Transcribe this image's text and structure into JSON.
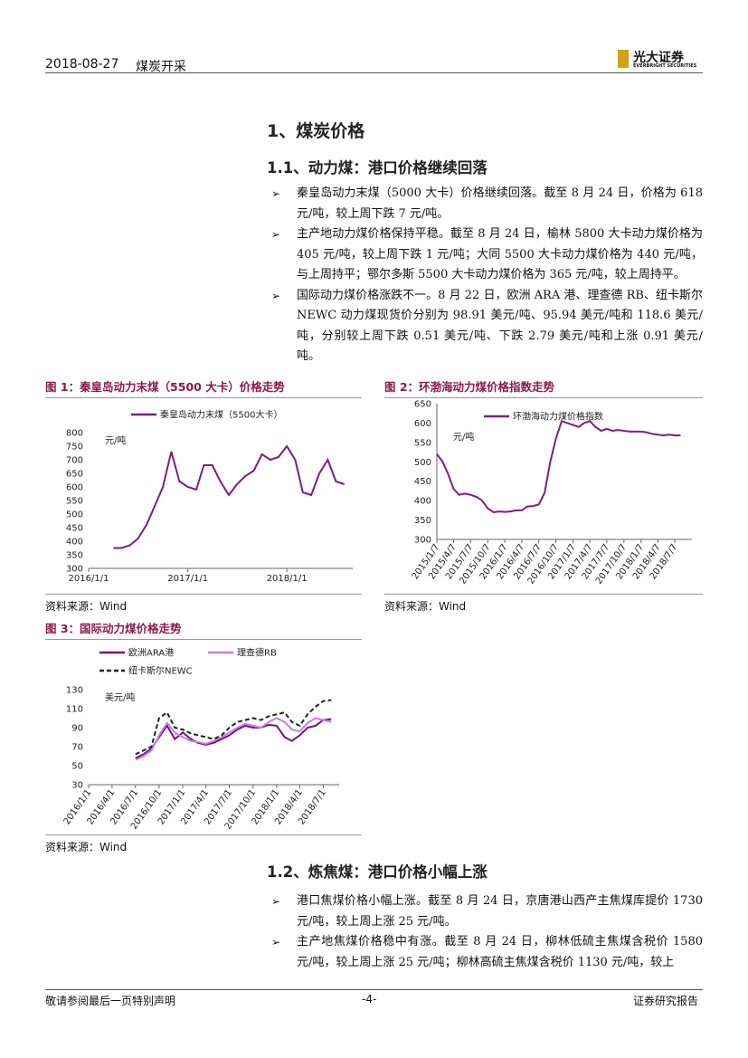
{
  "header": {
    "date": "2018-08-27",
    "industry": "煤炭开采",
    "logo_cn": "光大证券",
    "logo_en": "EVERBRIGHT SECURITIES"
  },
  "section": {
    "title": "1、煤炭价格"
  },
  "subsections": [
    {
      "title": "1.1、动力煤：港口价格继续回落",
      "bullets": [
        "秦皇岛动力末煤（5000 大卡）价格继续回落。截至 8 月 24 日，价格为 618 元/吨，较上周下跌 7 元/吨。",
        "主产地动力煤价格保持平稳。截至 8 月 24 日，榆林 5800 大卡动力煤价格为 405 元/吨，较上周下跌 1 元/吨；大同 5500 大卡动力煤价格为 440 元/吨，与上周持平；鄂尔多斯 5500 大卡动力煤价格为 365 元/吨，较上周持平。",
        "国际动力煤价格涨跌不一。8 月 22 日，欧洲 ARA 港、理查德 RB、纽卡斯尔 NEWC 动力煤现货价分别为 98.91 美元/吨、95.94 美元/吨和 118.6 美元/吨，分别较上周下跌 0.51 美元/吨、下跌 2.79 美元/吨和上涨 0.91 美元/吨。"
      ]
    },
    {
      "title": "1.2、炼焦煤：港口价格小幅上涨",
      "bullets": [
        "港口焦煤价格小幅上涨。截至 8 月 24 日，京唐港山西产主焦煤库提价 1730 元/吨，较上周上涨 25 元/吨。",
        "主产地焦煤价格稳中有涨。截至 8 月 24 日，柳林低硫主焦煤含税价 1580 元/吨，较上周上涨 25 元/吨；柳林高硫主焦煤含税价 1130 元/吨，较上"
      ]
    }
  ],
  "figures": [
    {
      "caption": "图 1：秦皇岛动力末煤（5500 大卡）价格走势",
      "source": "资料来源：Wind",
      "chart_data": {
        "type": "line",
        "y_unit": "元/吨",
        "x": [
          "2016/4/1",
          "2016/5/1",
          "2016/6/1",
          "2016/7/1",
          "2016/8/1",
          "2016/9/1",
          "2016/10/1",
          "2016/11/1",
          "2016/12/1",
          "2017/1/1",
          "2017/2/1",
          "2017/3/1",
          "2017/4/1",
          "2017/5/1",
          "2017/6/1",
          "2017/7/1",
          "2017/8/1",
          "2017/9/1",
          "2017/10/1",
          "2017/11/1",
          "2017/12/1",
          "2018/1/1",
          "2018/2/1",
          "2018/3/1",
          "2018/4/1",
          "2018/5/1",
          "2018/6/1",
          "2018/7/1",
          "2018/8/1"
        ],
        "series": [
          {
            "name": "秦皇岛动力末煤（5500大卡）",
            "color": "#7b1f7b",
            "values": [
              375,
              375,
              385,
              410,
              460,
              530,
              600,
              730,
              620,
              600,
              590,
              680,
              680,
              620,
              570,
              610,
              640,
              660,
              720,
              700,
              710,
              750,
              700,
              580,
              570,
              650,
              700,
              620,
              610
            ]
          }
        ],
        "xlim": [
          "2016/1/1",
          "2018/9/1"
        ],
        "xticks": [
          "2016/1/1",
          "2017/1/1",
          "2018/1/1"
        ],
        "ylim": [
          300,
          800
        ],
        "yticks": [
          300,
          350,
          400,
          450,
          500,
          550,
          600,
          650,
          700,
          750,
          800
        ],
        "grid": false,
        "legend": "top"
      }
    },
    {
      "caption": "图 2：环渤海动力煤价格指数走势",
      "source": "资料来源：Wind",
      "chart_data": {
        "type": "line",
        "y_unit": "元/吨",
        "x": [
          "2015/1/7",
          "2015/2/7",
          "2015/3/7",
          "2015/4/7",
          "2015/5/7",
          "2015/6/7",
          "2015/7/7",
          "2015/8/7",
          "2015/9/7",
          "2015/10/7",
          "2015/11/7",
          "2015/12/7",
          "2016/1/7",
          "2016/2/7",
          "2016/3/7",
          "2016/4/7",
          "2016/5/7",
          "2016/6/7",
          "2016/7/7",
          "2016/8/7",
          "2016/9/7",
          "2016/10/7",
          "2016/11/7",
          "2016/12/7",
          "2017/1/7",
          "2017/2/7",
          "2017/3/7",
          "2017/4/7",
          "2017/5/7",
          "2017/6/7",
          "2017/7/7",
          "2017/8/7",
          "2017/9/7",
          "2017/10/7",
          "2017/11/7",
          "2017/12/7",
          "2018/1/7",
          "2018/2/7",
          "2018/3/7",
          "2018/4/7",
          "2018/5/7",
          "2018/6/7",
          "2018/7/7",
          "2018/8/7"
        ],
        "series": [
          {
            "name": "环渤海动力煤价格指数",
            "color": "#7b1f7b",
            "values": [
              520,
              500,
              470,
              430,
              415,
              418,
              415,
              410,
              400,
              380,
              370,
              372,
              371,
              372,
              375,
              375,
              385,
              386,
              390,
              420,
              500,
              560,
              605,
              600,
              595,
              590,
              600,
              605,
              590,
              580,
              585,
              580,
              582,
              580,
              578,
              578,
              578,
              576,
              572,
              570,
              568,
              570,
              568,
              568
            ]
          }
        ],
        "xlim": [
          "2015/1/7",
          "2018/10/7"
        ],
        "xticks": [
          "2015/1/7",
          "2015/4/7",
          "2015/7/7",
          "2015/10/7",
          "2016/1/7",
          "2016/4/7",
          "2016/7/7",
          "2016/10/7",
          "2017/1/7",
          "2017/4/7",
          "2017/7/7",
          "2017/10/7",
          "2018/1/7",
          "2018/4/7",
          "2018/7/7"
        ],
        "ylim": [
          300,
          650
        ],
        "yticks": [
          300,
          350,
          400,
          450,
          500,
          550,
          600,
          650
        ],
        "grid": false,
        "legend": "top"
      }
    },
    {
      "caption": "图 3：国际动力煤价格走势",
      "source": "资料来源：Wind",
      "chart_data": {
        "type": "line",
        "y_unit": "美元/吨",
        "x": [
          "2016/7/1",
          "2016/8/1",
          "2016/9/1",
          "2016/10/1",
          "2016/11/1",
          "2016/12/1",
          "2017/1/1",
          "2017/2/1",
          "2017/3/1",
          "2017/4/1",
          "2017/5/1",
          "2017/6/1",
          "2017/7/1",
          "2017/8/1",
          "2017/9/1",
          "2017/10/1",
          "2017/11/1",
          "2017/12/1",
          "2018/1/1",
          "2018/2/1",
          "2018/3/1",
          "2018/4/1",
          "2018/5/1",
          "2018/6/1",
          "2018/7/1",
          "2018/8/1"
        ],
        "series": [
          {
            "name": "欧洲ARA港",
            "color": "#7b0f7b",
            "values": [
              58,
              62,
              68,
              80,
              92,
              78,
              85,
              78,
              74,
              72,
              74,
              78,
              82,
              88,
              92,
              90,
              90,
              93,
              92,
              80,
              76,
              82,
              90,
              92,
              98,
              99
            ]
          },
          {
            "name": "理查德RB",
            "color": "#c080e8",
            "values": [
              56,
              60,
              66,
              82,
              95,
              85,
              80,
              76,
              75,
              73,
              76,
              80,
              85,
              90,
              94,
              92,
              90,
              96,
              100,
              96,
              88,
              86,
              95,
              100,
              98,
              96
            ]
          },
          {
            "name": "纽卡斯尔NEWC",
            "color": "#222222",
            "dashed": true,
            "values": [
              62,
              66,
              70,
              100,
              106,
              90,
              88,
              84,
              82,
              80,
              78,
              82,
              90,
              96,
              98,
              100,
              98,
              102,
              104,
              106,
              96,
              92,
              104,
              112,
              118,
              119
            ]
          }
        ],
        "xlim": [
          "2016/1/1",
          "2018/9/1"
        ],
        "xticks": [
          "2016/1/1",
          "2016/4/1",
          "2016/7/1",
          "2016/10/1",
          "2017/1/1",
          "2017/4/1",
          "2017/7/1",
          "2017/10/1",
          "2018/1/1",
          "2018/4/1",
          "2018/7/1"
        ],
        "ylim": [
          30,
          130
        ],
        "yticks": [
          30,
          50,
          70,
          90,
          110,
          130
        ],
        "grid": false,
        "legend": "top-left"
      }
    }
  ],
  "footer": {
    "disclaimer": "敬请参阅最后一页特别声明",
    "page": "-4-",
    "report_type": "证券研究报告"
  }
}
